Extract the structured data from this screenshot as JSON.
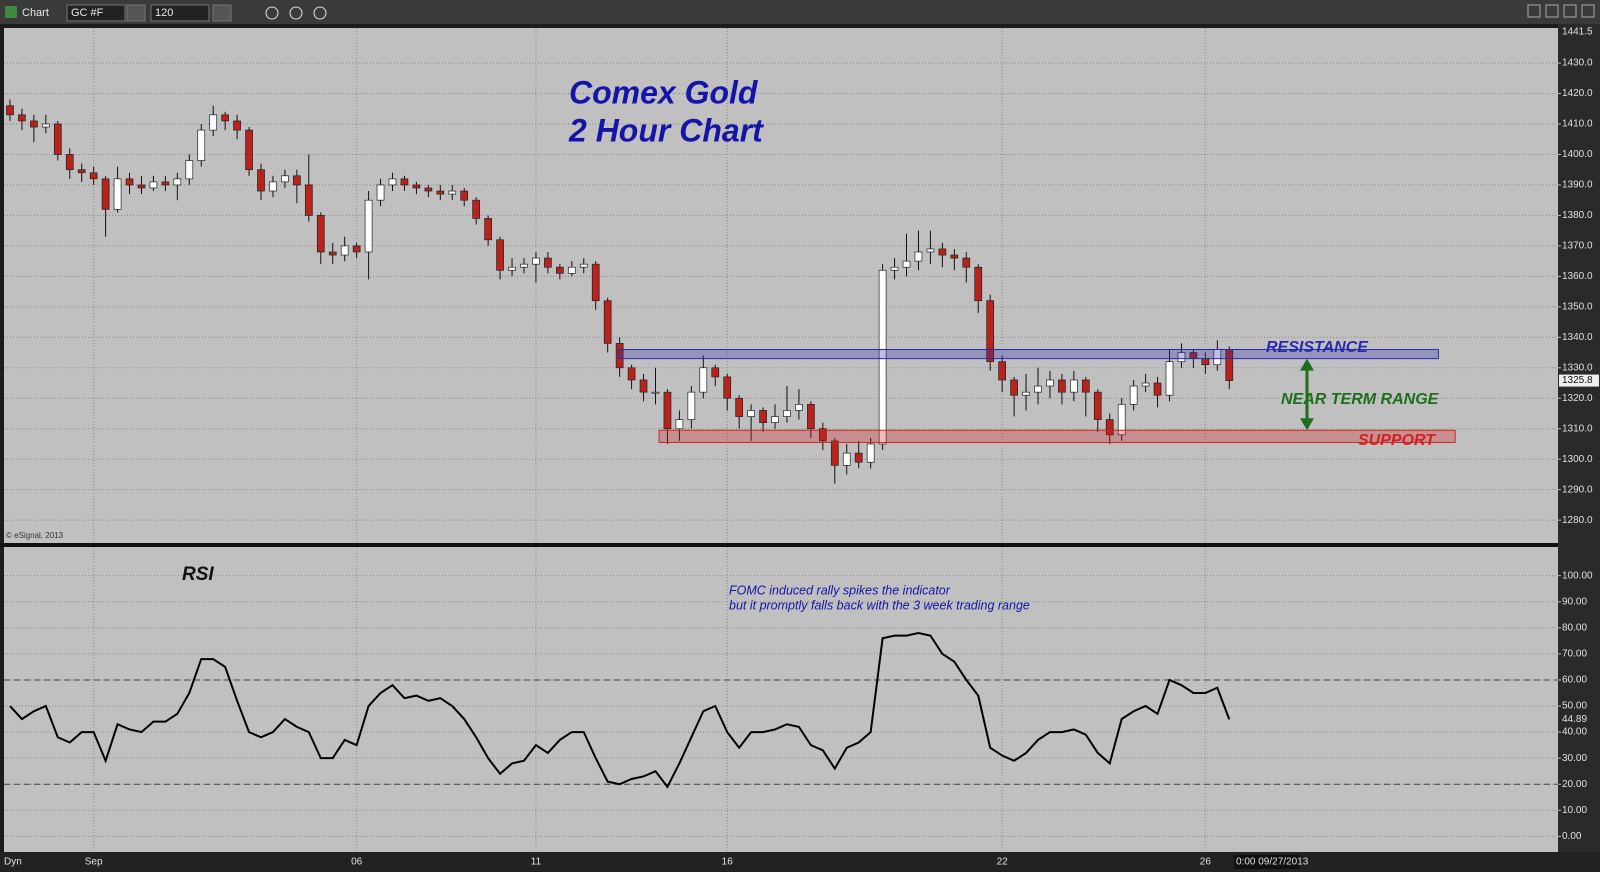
{
  "toolbar": {
    "title": "Chart",
    "symbol": "GC #F",
    "interval": "120"
  },
  "footer": {
    "mode": "Dyn",
    "cursor_time": "0:00 09/27/2013"
  },
  "chart_data": [
    {
      "type": "candlestick",
      "title": "Comex Gold",
      "subtitle": "2 Hour Chart",
      "source": "© eSignal, 2013",
      "open": [
        1416,
        1413,
        1411,
        1409,
        1410,
        1400,
        1395,
        1394,
        1392,
        1382,
        1392,
        1390,
        1389,
        1391,
        1390,
        1392,
        1398,
        1408,
        1413,
        1411,
        1408,
        1395,
        1388,
        1391,
        1393,
        1390,
        1380,
        1368,
        1367,
        1370,
        1368,
        1385,
        1390,
        1392,
        1390,
        1389,
        1388,
        1387,
        1388,
        1385,
        1379,
        1372,
        1362,
        1363,
        1364,
        1366,
        1363,
        1361,
        1363,
        1364,
        1352,
        1338,
        1330,
        1326,
        1322,
        1322,
        1310,
        1313,
        1322,
        1330,
        1327,
        1320,
        1314,
        1316,
        1312,
        1314,
        1316,
        1318,
        1310,
        1306,
        1298,
        1302,
        1299,
        1305,
        1362,
        1363,
        1365,
        1368,
        1369,
        1367,
        1366,
        1363,
        1352,
        1332,
        1326,
        1321,
        1322,
        1324,
        1326,
        1322,
        1326,
        1322,
        1313,
        1308,
        1318,
        1324,
        1325,
        1321,
        1332,
        1335,
        1333,
        1331,
        1336
      ],
      "high": [
        1418,
        1415,
        1413,
        1413,
        1411,
        1402,
        1397,
        1396,
        1393,
        1396,
        1394,
        1393,
        1393,
        1393,
        1394,
        1400,
        1410,
        1416,
        1414,
        1413,
        1409,
        1397,
        1393,
        1395,
        1395,
        1400,
        1381,
        1371,
        1373,
        1371,
        1388,
        1392,
        1394,
        1393,
        1391,
        1390,
        1390,
        1390,
        1389,
        1386,
        1380,
        1373,
        1366,
        1366,
        1368,
        1368,
        1364,
        1365,
        1366,
        1365,
        1353,
        1340,
        1331,
        1328,
        1330,
        1323,
        1316,
        1324,
        1334,
        1331,
        1328,
        1321,
        1318,
        1317,
        1318,
        1324,
        1323,
        1319,
        1312,
        1307,
        1305,
        1306,
        1307,
        1364,
        1366,
        1374,
        1375,
        1375,
        1371,
        1369,
        1368,
        1364,
        1354,
        1334,
        1327,
        1328,
        1330,
        1329,
        1328,
        1329,
        1327,
        1323,
        1315,
        1320,
        1326,
        1328,
        1327,
        1336,
        1338,
        1336,
        1335,
        1339,
        1337
      ],
      "low": [
        1411,
        1408,
        1404,
        1407,
        1398,
        1392,
        1391,
        1390,
        1373,
        1381,
        1387,
        1387,
        1388,
        1388,
        1385,
        1390,
        1396,
        1406,
        1408,
        1405,
        1393,
        1385,
        1386,
        1389,
        1384,
        1378,
        1364,
        1364,
        1365,
        1366,
        1359,
        1383,
        1388,
        1388,
        1387,
        1386,
        1385,
        1385,
        1383,
        1377,
        1370,
        1359,
        1360,
        1361,
        1358,
        1361,
        1359,
        1360,
        1361,
        1349,
        1335,
        1327,
        1323,
        1319,
        1318,
        1305,
        1306,
        1310,
        1320,
        1324,
        1316,
        1310,
        1306,
        1309,
        1310,
        1312,
        1313,
        1307,
        1303,
        1292,
        1295,
        1297,
        1297,
        1303,
        1359,
        1360,
        1362,
        1364,
        1363,
        1362,
        1358,
        1348,
        1329,
        1322,
        1314,
        1316,
        1318,
        1320,
        1318,
        1319,
        1314,
        1309,
        1305,
        1306,
        1316,
        1322,
        1317,
        1319,
        1330,
        1330,
        1328,
        1329,
        1323
      ],
      "close": [
        1413,
        1411,
        1409,
        1410,
        1400,
        1395,
        1394,
        1392,
        1382,
        1392,
        1390,
        1389,
        1391,
        1390,
        1392,
        1398,
        1408,
        1413,
        1411,
        1408,
        1395,
        1388,
        1391,
        1393,
        1390,
        1380,
        1368,
        1367,
        1370,
        1368,
        1385,
        1390,
        1392,
        1390,
        1389,
        1388,
        1387,
        1388,
        1385,
        1379,
        1372,
        1362,
        1363,
        1364,
        1366,
        1363,
        1361,
        1363,
        1364,
        1352,
        1338,
        1330,
        1326,
        1322,
        1322,
        1310,
        1313,
        1322,
        1330,
        1327,
        1320,
        1314,
        1316,
        1312,
        1314,
        1316,
        1318,
        1310,
        1306,
        1298,
        1302,
        1299,
        1305,
        1362,
        1363,
        1365,
        1368,
        1369,
        1367,
        1366,
        1363,
        1352,
        1332,
        1326,
        1321,
        1322,
        1324,
        1326,
        1322,
        1326,
        1322,
        1313,
        1308,
        1318,
        1324,
        1325,
        1321,
        1332,
        1335,
        1333,
        1331,
        1336,
        1325.8
      ],
      "up_color": "#ffffff",
      "down_color": "#b8231b",
      "xlim": [
        -0.5,
        129.5
      ],
      "ylim": [
        1272.5,
        1441.5
      ],
      "yticks": [
        {
          "value": 1280,
          "label": "1280.0"
        },
        {
          "value": 1290,
          "label": "1290.0"
        },
        {
          "value": 1300,
          "label": "1300.0"
        },
        {
          "value": 1310,
          "label": "1310.0"
        },
        {
          "value": 1320,
          "label": "1320.0"
        },
        {
          "value": 1330,
          "label": "1330.0"
        },
        {
          "value": 1340,
          "label": "1340.0"
        },
        {
          "value": 1350,
          "label": "1350.0"
        },
        {
          "value": 1360,
          "label": "1360.0"
        },
        {
          "value": 1370,
          "label": "1370.0"
        },
        {
          "value": 1380,
          "label": "1380.0"
        },
        {
          "value": 1390,
          "label": "1390.0"
        },
        {
          "value": 1400,
          "label": "1400.0"
        },
        {
          "value": 1410,
          "label": "1410.0"
        },
        {
          "value": 1420,
          "label": "1420.0"
        },
        {
          "value": 1430,
          "label": "1430.0"
        }
      ],
      "grid": true,
      "zones": [
        {
          "label": "RESISTANCE",
          "from": 50.9,
          "to": 119.5,
          "low": 1333,
          "high": 1336,
          "color": "#2a2ab0"
        },
        {
          "label": "SUPPORT",
          "from": 54.3,
          "to": 120.9,
          "low": 1305.5,
          "high": 1309.5,
          "color": "#d42020"
        }
      ],
      "range_label": "NEAR TERM RANGE",
      "range_color": "#1e6e1e"
    },
    {
      "type": "line",
      "title": "RSI",
      "annotation": [
        "FOMC induced rally spikes the indicator",
        "but it promptly falls back with the 3 week trading range"
      ],
      "values": [
        50,
        45,
        48,
        50,
        38,
        36,
        40,
        40,
        29,
        43,
        41,
        40,
        44,
        44,
        47,
        55,
        68,
        68,
        65,
        52,
        40,
        38,
        40,
        45,
        42,
        40,
        30,
        30,
        37,
        35,
        50,
        55,
        58,
        53,
        54,
        52,
        53,
        50,
        45,
        38,
        30,
        24,
        28,
        29,
        35,
        32,
        37,
        40,
        40,
        30,
        21,
        20,
        22,
        23,
        25,
        19,
        28,
        38,
        48,
        50,
        40,
        34,
        40,
        40,
        41,
        43,
        42,
        35,
        33,
        26,
        34,
        36,
        40,
        76,
        77,
        77,
        78,
        77,
        70,
        67,
        60,
        54,
        34,
        31,
        29,
        32,
        37,
        40,
        40,
        41,
        39,
        32,
        28,
        45,
        48,
        50,
        47,
        60,
        58,
        55,
        55,
        57,
        44.89
      ],
      "color": "#000000",
      "xlim": [
        -0.5,
        129.5
      ],
      "ylim": [
        -6,
        111
      ],
      "yticks": [
        {
          "value": 0,
          "label": "0.00"
        },
        {
          "value": 10,
          "label": "10.00"
        },
        {
          "value": 20,
          "label": "20.00"
        },
        {
          "value": 30,
          "label": "30.00"
        },
        {
          "value": 40,
          "label": "40.00"
        },
        {
          "value": 50,
          "label": "50.00"
        },
        {
          "value": 60,
          "label": "60.00"
        },
        {
          "value": 70,
          "label": "70.00"
        },
        {
          "value": 80,
          "label": "80.00"
        },
        {
          "value": 90,
          "label": "90.00"
        },
        {
          "value": 100,
          "label": "100.00"
        }
      ],
      "grid": true,
      "levels": [
        20,
        60
      ],
      "xticks": [
        {
          "value": 7,
          "label": "Sep"
        },
        {
          "value": 29,
          "label": "06"
        },
        {
          "value": 44,
          "label": "11"
        },
        {
          "value": 60,
          "label": "16"
        },
        {
          "value": 83,
          "label": "22"
        },
        {
          "value": 100,
          "label": "26"
        }
      ]
    }
  ]
}
